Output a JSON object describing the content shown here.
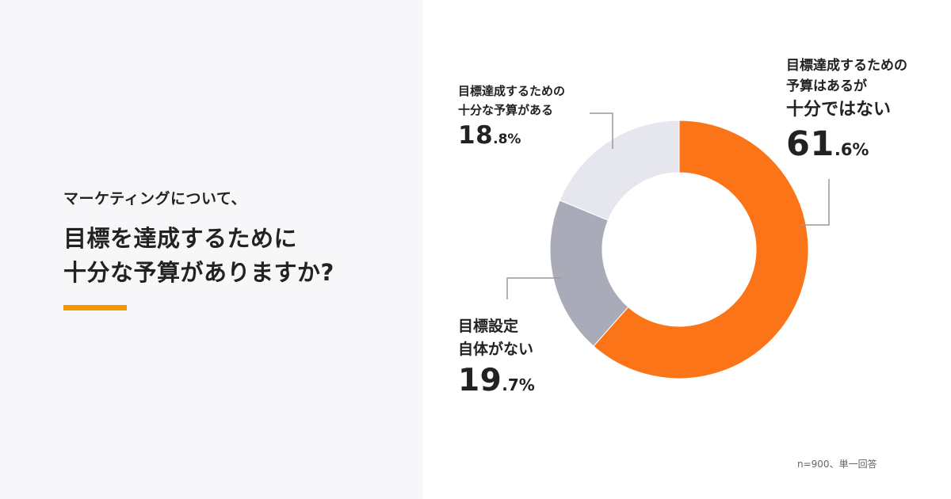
{
  "question": {
    "lead": "マーケティングについて、",
    "lines": [
      "目標を達成するために",
      "十分な予算がありますか?"
    ]
  },
  "colors": {
    "accent_bar": "#f39800",
    "series": [
      "#fc7418",
      "#a9abb8",
      "#e6e7ee"
    ],
    "leader": "#999999"
  },
  "labels": {
    "enough": {
      "lines": [
        "目標達成するための",
        "十分な予算がある"
      ],
      "pct_int": "18",
      "pct_dec": ".8%"
    },
    "not_enough": {
      "lines": [
        "目標達成するための",
        "予算はあるが",
        "十分ではない"
      ],
      "pct_int": "61",
      "pct_dec": ".6%"
    },
    "no_goal": {
      "lines": [
        "目標設定",
        "自体がない"
      ],
      "pct_int": "19",
      "pct_dec": ".7%"
    }
  },
  "note": "n=900、単一回答",
  "chart_data": {
    "type": "pie",
    "donut": true,
    "categories": [
      "目標達成するための予算はあるが十分ではない",
      "目標設定自体がない",
      "目標達成するための十分な予算がある"
    ],
    "values": [
      61.6,
      19.7,
      18.8
    ],
    "colors": [
      "#fc7418",
      "#a9abb8",
      "#e6e7ee"
    ],
    "start": "top",
    "direction": "clockwise",
    "title": "",
    "legend": "none"
  }
}
